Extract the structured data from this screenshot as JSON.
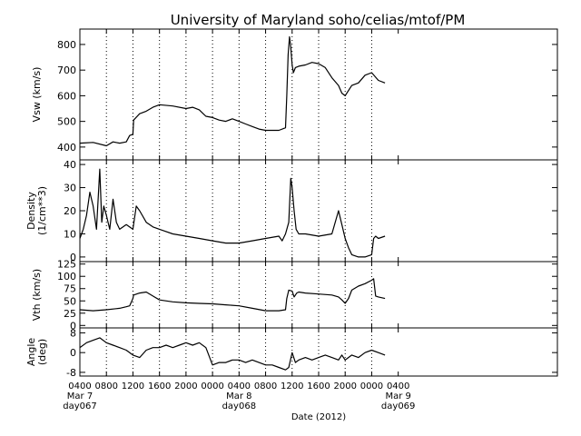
{
  "chart_data": {
    "type": "line",
    "title": "University of Maryland  soho/celias/mtof/PM",
    "xlabel": "Date (2012)",
    "x_unit": "hours since 2012-03-07 00:00",
    "x_range": [
      4,
      76
    ],
    "x_ticks": [
      {
        "x": 4,
        "label": "0400"
      },
      {
        "x": 8,
        "label": "0800"
      },
      {
        "x": 12,
        "label": "1200"
      },
      {
        "x": 16,
        "label": "1600"
      },
      {
        "x": 20,
        "label": "2000"
      },
      {
        "x": 24,
        "label": "0000"
      },
      {
        "x": 28,
        "label": "0400"
      },
      {
        "x": 32,
        "label": "0800"
      },
      {
        "x": 36,
        "label": "1200"
      },
      {
        "x": 40,
        "label": "1600"
      },
      {
        "x": 44,
        "label": "2000"
      },
      {
        "x": 48,
        "label": "0000"
      },
      {
        "x": 52,
        "label": "0400"
      }
    ],
    "date_labels": [
      {
        "x": 4,
        "line1": "Mar 7",
        "line2": "day067"
      },
      {
        "x": 28,
        "line1": "Mar 8",
        "line2": "day068"
      },
      {
        "x": 52,
        "line1": "Mar 9",
        "line2": "day069"
      }
    ],
    "panels": [
      {
        "id": "vsw",
        "ylabel": [
          "Vsw (km/s)"
        ],
        "ylim": [
          350,
          860
        ],
        "yticks": [
          400,
          500,
          600,
          700,
          800
        ],
        "ytick_labels": [
          "400",
          "500",
          "600",
          "700",
          "800"
        ],
        "x": [
          4,
          6,
          8,
          9,
          10,
          11,
          11.5,
          12,
          12.1,
          13,
          14,
          15,
          16,
          18,
          20,
          21,
          22,
          23,
          24,
          25,
          26,
          27,
          28,
          29,
          30,
          31,
          32,
          33,
          34,
          35,
          35.2,
          35.4,
          35.6,
          35.8,
          36,
          36.2,
          36.5,
          37,
          38,
          39,
          40,
          41,
          42,
          43,
          43.5,
          44,
          45,
          46,
          47,
          48,
          49,
          50
        ],
        "y": [
          415,
          418,
          405,
          420,
          415,
          420,
          445,
          450,
          505,
          530,
          540,
          555,
          565,
          560,
          550,
          555,
          545,
          520,
          515,
          505,
          500,
          510,
          500,
          490,
          480,
          470,
          465,
          465,
          465,
          475,
          600,
          760,
          830,
          790,
          720,
          690,
          710,
          715,
          720,
          730,
          725,
          710,
          670,
          640,
          610,
          600,
          640,
          650,
          680,
          690,
          660,
          650
        ]
      },
      {
        "id": "density",
        "ylabel": [
          "Density",
          "(1/cm**3)"
        ],
        "ylim": [
          -2,
          42
        ],
        "yticks": [
          0,
          10,
          20,
          30,
          40
        ],
        "ytick_labels": [
          "0",
          "10",
          "20",
          "30",
          "40"
        ],
        "x": [
          4,
          4.5,
          5,
          5.5,
          6,
          6.5,
          7,
          7.3,
          7.6,
          8,
          8.5,
          9,
          9.5,
          10,
          11,
          12,
          12.5,
          13,
          14,
          15,
          16,
          18,
          20,
          22,
          24,
          26,
          28,
          30,
          32,
          34,
          34.5,
          35,
          35.5,
          35.8,
          36,
          36.3,
          36.6,
          37,
          38,
          40,
          42,
          43,
          43.5,
          44,
          44.5,
          45,
          46,
          47,
          48,
          48.3,
          48.6,
          49,
          50
        ],
        "y": [
          8,
          12,
          18,
          28,
          22,
          12,
          38,
          15,
          22,
          18,
          12,
          25,
          15,
          12,
          14,
          12,
          22,
          20,
          15,
          13,
          12,
          10,
          9,
          8,
          7,
          6,
          6,
          7,
          8,
          9,
          7,
          10,
          15,
          34,
          30,
          20,
          12,
          10,
          10,
          9,
          10,
          20,
          14,
          8,
          4,
          1,
          0,
          0,
          1,
          8,
          9,
          8,
          9
        ]
      },
      {
        "id": "vth",
        "ylabel": [
          "Vth (km/s)"
        ],
        "ylim": [
          -5,
          130
        ],
        "yticks": [
          0,
          25,
          50,
          75,
          100,
          125
        ],
        "ytick_labels": [
          "0",
          "25",
          "50",
          "75",
          "100",
          "125"
        ],
        "x": [
          4,
          6,
          8,
          10,
          11,
          11.5,
          12,
          12.1,
          13,
          14,
          15,
          16,
          18,
          20,
          22,
          24,
          26,
          28,
          30,
          32,
          34,
          35,
          35.2,
          35.5,
          36,
          36.3,
          36.7,
          37,
          38,
          40,
          42,
          43,
          43.5,
          44,
          44.5,
          45,
          46,
          47,
          48,
          48.3,
          48.6,
          49,
          50
        ],
        "y": [
          32,
          30,
          32,
          35,
          38,
          40,
          55,
          62,
          66,
          68,
          60,
          52,
          48,
          46,
          45,
          44,
          42,
          40,
          35,
          30,
          30,
          32,
          55,
          72,
          70,
          58,
          66,
          68,
          66,
          64,
          62,
          58,
          52,
          45,
          55,
          72,
          80,
          85,
          92,
          95,
          60,
          58,
          55
        ]
      },
      {
        "id": "angle",
        "ylabel": [
          "Angle",
          "(deg)"
        ],
        "ylim": [
          -9.5,
          10
        ],
        "yticks": [
          -8,
          0,
          8
        ],
        "ytick_labels": [
          "-8",
          "0",
          "8"
        ],
        "x": [
          4,
          5,
          6,
          7,
          8,
          9,
          10,
          11,
          12,
          13,
          14,
          15,
          16,
          17,
          18,
          19,
          20,
          21,
          22,
          23,
          24,
          25,
          26,
          27,
          28,
          29,
          30,
          31,
          32,
          33,
          34,
          35,
          35.5,
          36,
          36.5,
          37,
          38,
          39,
          40,
          41,
          42,
          43,
          43.5,
          44,
          45,
          46,
          47,
          48,
          49,
          50
        ],
        "y": [
          2,
          4,
          5,
          6,
          4,
          3,
          2,
          1,
          -1,
          -2,
          1,
          2,
          2,
          3,
          2,
          3,
          4,
          3,
          4,
          2,
          -5,
          -4,
          -4,
          -3,
          -3,
          -4,
          -3,
          -4,
          -5,
          -5,
          -6,
          -7,
          -6,
          0,
          -4,
          -3,
          -2,
          -3,
          -2,
          -1,
          -2,
          -3,
          -1,
          -3,
          -1,
          -2,
          0,
          1,
          0,
          -1
        ]
      }
    ],
    "colors": {
      "line": "#000000",
      "axes": "#000000",
      "grid": "#000000",
      "background": "#ffffff"
    },
    "grid": "dotted vertical lines at each x tick",
    "legend": "none"
  }
}
